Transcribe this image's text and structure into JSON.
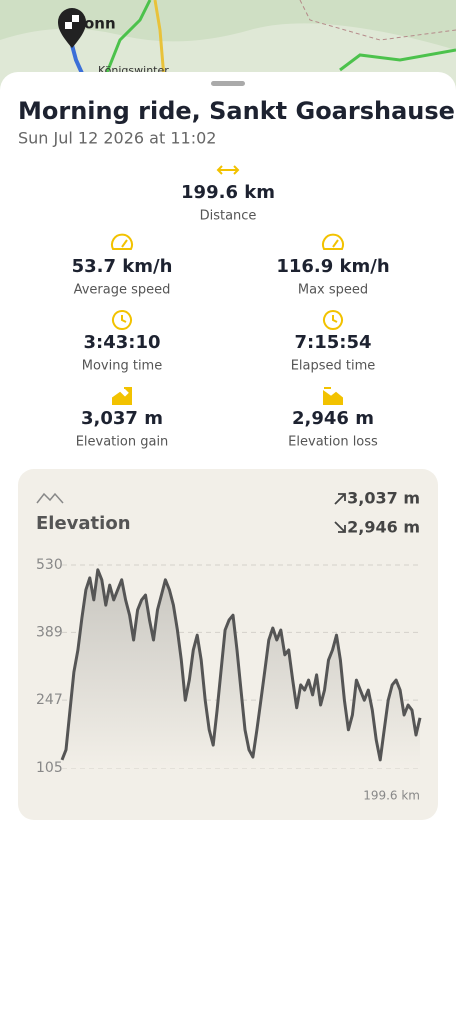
{
  "map": {
    "labels": [
      "onn",
      "Königswinter"
    ]
  },
  "header": {
    "title": "Morning ride, Sankt Goarshausen",
    "subtitle": "Sun Jul 12 2026 at 11:02"
  },
  "stats": [
    {
      "value": "199.6 km",
      "label": "Distance"
    },
    {
      "value": "53.7 km/h",
      "label": "Average speed"
    },
    {
      "value": "116.9 km/h",
      "label": "Max speed"
    },
    {
      "value": "3:43:10",
      "label": "Moving time"
    },
    {
      "value": "7:15:54",
      "label": "Elapsed time"
    },
    {
      "value": "3,037 m",
      "label": "Elevation gain"
    },
    {
      "value": "2,946 m",
      "label": "Elevation loss"
    }
  ],
  "chart_data": {
    "type": "area",
    "title": "Elevation",
    "gain": "3,037 m",
    "loss": "2,946 m",
    "xlabel": "199.6 km",
    "color": "#555555",
    "ylim": [
      105,
      530
    ],
    "yticks": [
      530,
      389,
      247,
      105
    ],
    "grid": true,
    "values": [
      122,
      143,
      226,
      306,
      352,
      419,
      478,
      503,
      457,
      520,
      499,
      446,
      488,
      457,
      478,
      499,
      457,
      425,
      373,
      436,
      457,
      467,
      415,
      373,
      436,
      467,
      499,
      478,
      446,
      394,
      331,
      247,
      289,
      352,
      383,
      331,
      247,
      185,
      153,
      226,
      310,
      394,
      415,
      425,
      352,
      268,
      185,
      143,
      128,
      185,
      247,
      310,
      373,
      398,
      373,
      394,
      342,
      352,
      289,
      231,
      279,
      268,
      289,
      258,
      300,
      237,
      268,
      331,
      352,
      383,
      331,
      247,
      185,
      216,
      289,
      268,
      247,
      268,
      226,
      164,
      122,
      185,
      247,
      279,
      289,
      268,
      216,
      237,
      226,
      174,
      210
    ]
  }
}
